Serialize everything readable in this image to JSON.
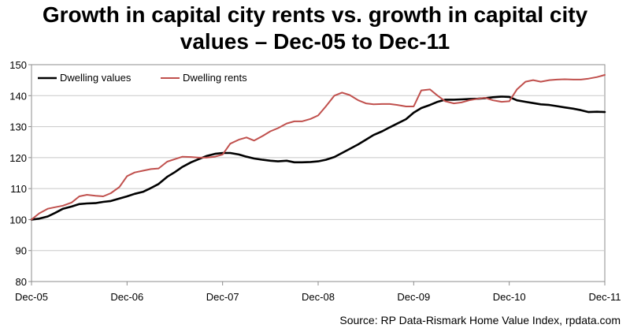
{
  "title_line1": "Growth in capital city rents vs. growth in capital city",
  "title_line2": "values – Dec-05 to Dec-11",
  "source": "Source: RP Data-Rismark Home Value Index, rpdata.com",
  "chart_data": {
    "type": "line",
    "title": "Growth in capital city rents vs. growth in capital city values – Dec-05 to Dec-11",
    "xlabel": "",
    "ylabel": "",
    "x_ticks": [
      "Dec-05",
      "Dec-06",
      "Dec-07",
      "Dec-08",
      "Dec-09",
      "Dec-10",
      "Dec-11"
    ],
    "ylim": [
      80,
      150
    ],
    "y_ticks": [
      80,
      90,
      100,
      110,
      120,
      130,
      140,
      150
    ],
    "grid": "horizontal",
    "legend_position": "top-left",
    "series": [
      {
        "name": "Dwelling values",
        "color": "#000000",
        "x": [
          0,
          0.08,
          0.17,
          0.25,
          0.33,
          0.42,
          0.5,
          0.58,
          0.67,
          0.75,
          0.83,
          0.92,
          1.0,
          1.08,
          1.17,
          1.25,
          1.33,
          1.42,
          1.5,
          1.58,
          1.67,
          1.75,
          1.83,
          1.92,
          2.0,
          2.08,
          2.17,
          2.25,
          2.33,
          2.42,
          2.5,
          2.58,
          2.67,
          2.75,
          2.83,
          2.92,
          3.0,
          3.08,
          3.17,
          3.25,
          3.33,
          3.42,
          3.5,
          3.58,
          3.67,
          3.75,
          3.83,
          3.92,
          4.0,
          4.08,
          4.17,
          4.25,
          4.33,
          4.42,
          4.5,
          4.58,
          4.67,
          4.75,
          4.83,
          4.92,
          5.0,
          5.08,
          5.17,
          5.25,
          5.33,
          5.42,
          5.5,
          5.58,
          5.67,
          5.75,
          5.83,
          5.92,
          6.0
        ],
        "values": [
          100,
          100.3,
          101,
          102.2,
          103.5,
          104.2,
          105,
          105.2,
          105.3,
          105.7,
          106,
          106.8,
          107.5,
          108.3,
          109,
          110.2,
          111.5,
          113.8,
          115.3,
          117,
          118.5,
          119.5,
          120.5,
          121.2,
          121.5,
          121.5,
          121,
          120.3,
          119.7,
          119.3,
          119,
          118.8,
          119,
          118.5,
          118.5,
          118.6,
          118.8,
          119.3,
          120.2,
          121.5,
          122.8,
          124.3,
          125.8,
          127.3,
          128.5,
          129.8,
          131,
          132.4,
          134.5,
          136,
          137,
          138,
          138.7,
          138.7,
          138.8,
          138.9,
          139,
          139.2,
          139.5,
          139.7,
          139.6,
          138.5,
          138,
          137.6,
          137.2,
          137,
          136.6,
          136.2,
          135.8,
          135.3,
          134.7,
          134.8,
          134.7
        ]
      },
      {
        "name": "Dwelling rents",
        "color": "#c0504d",
        "x": [
          0,
          0.08,
          0.17,
          0.25,
          0.33,
          0.42,
          0.5,
          0.58,
          0.67,
          0.75,
          0.83,
          0.92,
          1.0,
          1.08,
          1.17,
          1.25,
          1.33,
          1.42,
          1.5,
          1.58,
          1.67,
          1.75,
          1.83,
          1.92,
          2.0,
          2.08,
          2.17,
          2.25,
          2.33,
          2.42,
          2.5,
          2.58,
          2.67,
          2.75,
          2.83,
          2.92,
          3.0,
          3.08,
          3.17,
          3.25,
          3.33,
          3.42,
          3.5,
          3.58,
          3.67,
          3.75,
          3.83,
          3.92,
          4.0,
          4.08,
          4.17,
          4.25,
          4.33,
          4.42,
          4.5,
          4.58,
          4.67,
          4.75,
          4.83,
          4.92,
          5.0,
          5.08,
          5.17,
          5.25,
          5.33,
          5.42,
          5.5,
          5.58,
          5.67,
          5.75,
          5.83,
          5.92,
          6.0
        ],
        "values": [
          100,
          102,
          103.5,
          104,
          104.5,
          105.5,
          107.5,
          108,
          107.7,
          107.5,
          108.5,
          110.5,
          114,
          115.2,
          115.8,
          116.3,
          116.5,
          118.7,
          119.5,
          120.3,
          120.2,
          120,
          120,
          120.3,
          121,
          124.5,
          125.8,
          126.5,
          125.5,
          127,
          128.5,
          129.5,
          131,
          131.7,
          131.7,
          132.5,
          133.6,
          136.5,
          140,
          141,
          140.2,
          138.5,
          137.5,
          137.2,
          137.3,
          137.3,
          137,
          136.5,
          136.5,
          141.7,
          142,
          140,
          138.2,
          137.5,
          137.8,
          138.5,
          139,
          139.3,
          138.5,
          138,
          138.2,
          142,
          144.5,
          145,
          144.5,
          145,
          145.2,
          145.3,
          145.2,
          145.2,
          145.5,
          146,
          146.7
        ]
      }
    ]
  }
}
